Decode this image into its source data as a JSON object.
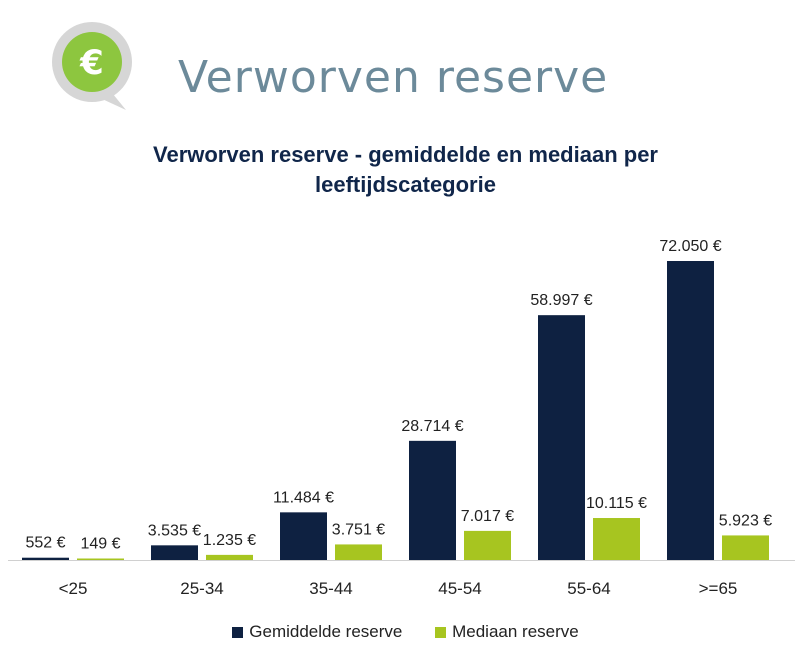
{
  "header": {
    "logo_symbol": "€",
    "title": "Verworven reserve"
  },
  "colors": {
    "gemiddelde": "#0e2141",
    "mediaan": "#a7c520",
    "logo_green": "#8dc63f",
    "logo_grey": "#d6d6d6",
    "title": "#6c8a9a"
  },
  "chart_data": {
    "type": "bar",
    "title_lines": [
      "Verworven reserve - gemiddelde en mediaan per",
      "leeftijdscategorie"
    ],
    "categories": [
      "<25",
      "25-34",
      "35-44",
      "45-54",
      "55-64",
      ">=65"
    ],
    "series": [
      {
        "name": "Gemiddelde reserve",
        "values": [
          552,
          3535,
          11484,
          28714,
          58997,
          72050
        ],
        "labels": [
          "552 €",
          "3.535 €",
          "11.484 €",
          "28.714 €",
          "58.997 €",
          "72.050 €"
        ]
      },
      {
        "name": "Mediaan reserve",
        "values": [
          149,
          1235,
          3751,
          7017,
          10115,
          5923
        ],
        "labels": [
          "149 €",
          "1.235 €",
          "3.751 €",
          "7.017 €",
          "10.115 €",
          "5.923 €"
        ]
      }
    ],
    "ylim": [
      0,
      72050
    ],
    "grid": false,
    "legend_position": "bottom"
  }
}
